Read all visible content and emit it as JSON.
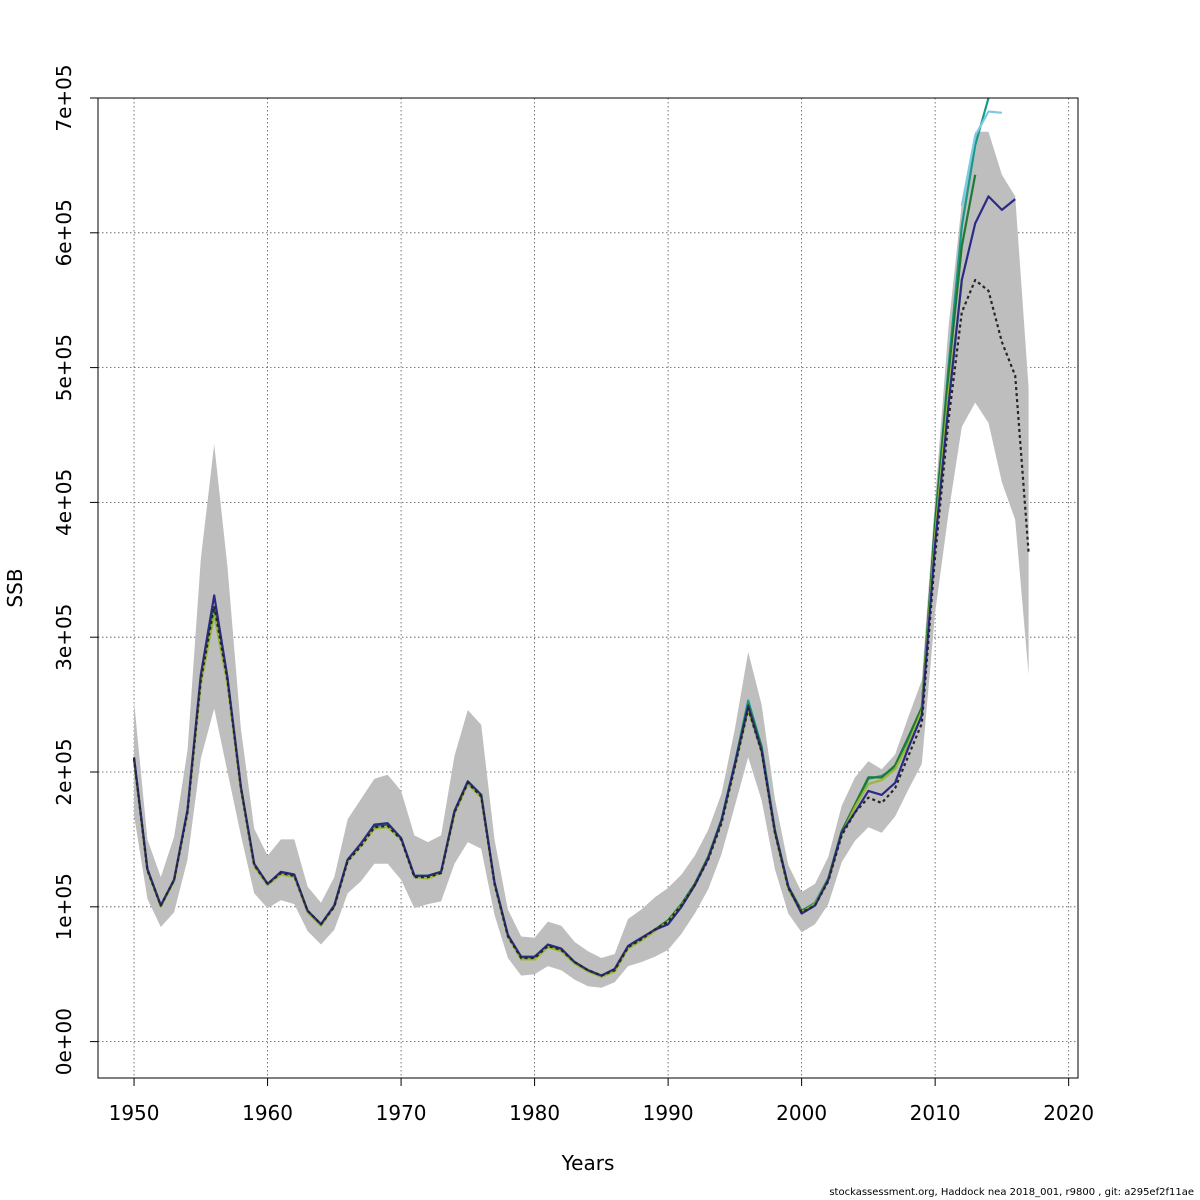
{
  "chart_data": {
    "type": "line",
    "title": "",
    "xlabel": "Years",
    "ylabel": "SSB",
    "xlim": [
      1947.3,
      2020.7
    ],
    "ylim": [
      -27000,
      700000
    ],
    "x_ticks": [
      1950,
      1960,
      1970,
      1980,
      1990,
      2000,
      2010,
      2020
    ],
    "x_tick_labels": [
      "1950",
      "1960",
      "1970",
      "1980",
      "1990",
      "2000",
      "2010",
      "2020"
    ],
    "y_ticks": [
      0,
      100000,
      200000,
      300000,
      400000,
      500000,
      600000,
      700000
    ],
    "y_tick_labels": [
      "0e+00",
      "1e+05",
      "2e+05",
      "3e+05",
      "4e+05",
      "5e+05",
      "6e+05",
      "7e+05"
    ],
    "grid": true,
    "band": {
      "x": [
        1950,
        1951,
        1952,
        1953,
        1954,
        1955,
        1956,
        1957,
        1958,
        1959,
        1960,
        1961,
        1962,
        1963,
        1964,
        1965,
        1966,
        1967,
        1968,
        1969,
        1970,
        1971,
        1972,
        1973,
        1974,
        1975,
        1976,
        1977,
        1978,
        1979,
        1980,
        1981,
        1982,
        1983,
        1984,
        1985,
        1986,
        1987,
        1988,
        1989,
        1990,
        1991,
        1992,
        1993,
        1994,
        1995,
        1996,
        1997,
        1998,
        1999,
        2000,
        2001,
        2002,
        2003,
        2004,
        2005,
        2006,
        2007,
        2008,
        2009,
        2010,
        2011,
        2012,
        2013,
        2014,
        2015,
        2016,
        2017
      ],
      "upper": [
        253000,
        150000,
        122000,
        152000,
        216000,
        358000,
        443000,
        352000,
        232000,
        158000,
        138000,
        150000,
        150000,
        115000,
        103000,
        122000,
        165000,
        180000,
        195000,
        198000,
        186000,
        153000,
        148000,
        153000,
        212000,
        246000,
        235000,
        150000,
        98000,
        78000,
        77000,
        89000,
        86000,
        74000,
        67000,
        62000,
        65000,
        91000,
        98000,
        107000,
        114000,
        124000,
        138000,
        157000,
        184000,
        232000,
        289000,
        250000,
        180000,
        131000,
        111000,
        117000,
        137000,
        175000,
        196000,
        208000,
        202000,
        213000,
        241000,
        268000,
        402000,
        530000,
        622000,
        675000,
        675000,
        643000,
        627000,
        485000
      ],
      "lower": [
        168000,
        106000,
        85000,
        96000,
        135000,
        210000,
        247000,
        200000,
        153000,
        110000,
        99000,
        105000,
        102000,
        82000,
        72000,
        83000,
        110000,
        119000,
        132000,
        132000,
        120000,
        99000,
        102000,
        104000,
        132000,
        148000,
        143000,
        94000,
        62000,
        49000,
        50000,
        56000,
        53000,
        46000,
        41000,
        40000,
        44000,
        56000,
        59000,
        63000,
        68000,
        80000,
        95000,
        113000,
        139000,
        175000,
        211000,
        179000,
        128000,
        95000,
        81000,
        87000,
        102000,
        133000,
        149000,
        159000,
        155000,
        167000,
        187000,
        206000,
        318000,
        392000,
        456000,
        474000,
        459000,
        415000,
        387000,
        272000
      ]
    },
    "series": [
      {
        "color": "#262626",
        "dash": "3,3",
        "x": [
          1950,
          1951,
          1952,
          1953,
          1954,
          1955,
          1956,
          1957,
          1958,
          1959,
          1960,
          1961,
          1962,
          1963,
          1964,
          1965,
          1966,
          1967,
          1968,
          1969,
          1970,
          1971,
          1972,
          1973,
          1974,
          1975,
          1976,
          1977,
          1978,
          1979,
          1980,
          1981,
          1982,
          1983,
          1984,
          1985,
          1986,
          1987,
          1988,
          1989,
          1990,
          1991,
          1992,
          1993,
          1994,
          1995,
          1996,
          1997,
          1998,
          1999,
          2000,
          2001,
          2002,
          2003,
          2004,
          2005,
          2006,
          2007,
          2008,
          2009,
          2010,
          2011,
          2012,
          2013,
          2014,
          2015,
          2016,
          2017
        ],
        "y": [
          210000,
          127000,
          101000,
          120000,
          170000,
          268000,
          323000,
          268000,
          188000,
          131000,
          117000,
          125000,
          123000,
          97000,
          87000,
          100000,
          134000,
          145000,
          159000,
          160000,
          150000,
          122000,
          122000,
          125000,
          170000,
          192000,
          182000,
          117000,
          78000,
          62000,
          62000,
          71000,
          68000,
          59000,
          53000,
          49000,
          53000,
          70000,
          76000,
          83000,
          89000,
          101000,
          116000,
          135000,
          162000,
          204000,
          247000,
          215000,
          155000,
          114000,
          96000,
          101000,
          119000,
          153000,
          170000,
          181000,
          177000,
          188000,
          212000,
          236000,
          360000,
          461000,
          541000,
          565000,
          557000,
          519000,
          494000,
          363000
        ]
      },
      {
        "color": "#2b2b87",
        "x": [
          1950,
          1951,
          1952,
          1953,
          1954,
          1955,
          1956,
          1957,
          1958,
          1959,
          1960,
          1961,
          1962,
          1963,
          1964,
          1965,
          1966,
          1967,
          1968,
          1969,
          1970,
          1971,
          1972,
          1973,
          1974,
          1975,
          1976,
          1977,
          1978,
          1979,
          1980,
          1981,
          1982,
          1983,
          1984,
          1985,
          1986,
          1987,
          1988,
          1989,
          1990,
          1991,
          1992,
          1993,
          1994,
          1995,
          1996,
          1997,
          1998,
          1999,
          2000,
          2001,
          2002,
          2003,
          2004,
          2005,
          2006,
          2007,
          2008,
          2009,
          2010,
          2011,
          2012,
          2013,
          2014,
          2015,
          2016
        ],
        "y": [
          211000,
          128000,
          101000,
          120000,
          172000,
          272000,
          331000,
          270000,
          189000,
          132000,
          117000,
          126000,
          124000,
          97000,
          87000,
          101000,
          135000,
          147000,
          161000,
          162000,
          151000,
          123000,
          123000,
          126000,
          171000,
          193000,
          183000,
          118000,
          79000,
          63000,
          63000,
          72000,
          69000,
          59000,
          53000,
          49000,
          54000,
          71000,
          77000,
          83000,
          87000,
          100000,
          116000,
          136000,
          164000,
          206000,
          249000,
          216000,
          156000,
          115000,
          95000,
          101000,
          120000,
          155000,
          170000,
          186000,
          183000,
          192000,
          218000,
          242000,
          369000,
          472000,
          565000,
          607000,
          627000,
          617000,
          625000
        ]
      },
      {
        "color": "#1a9988",
        "x": [
          1950,
          1951,
          1952,
          1953,
          1954,
          1955,
          1956,
          1957,
          1958,
          1959,
          1960,
          1961,
          1962,
          1963,
          1964,
          1965,
          1966,
          1967,
          1968,
          1969,
          1970,
          1971,
          1972,
          1973,
          1974,
          1975,
          1976,
          1977,
          1978,
          1979,
          1980,
          1981,
          1982,
          1983,
          1984,
          1985,
          1986,
          1987,
          1988,
          1989,
          1990,
          1991,
          1992,
          1993,
          1994,
          1995,
          1996,
          1997,
          1998,
          1999,
          2000,
          2001,
          2002,
          2003,
          2004,
          2005,
          2006,
          2007,
          2008,
          2009,
          2010,
          2011,
          2012,
          2013,
          2014
        ],
        "y": [
          210000,
          128000,
          101000,
          120000,
          171000,
          268000,
          322000,
          267000,
          188000,
          131000,
          117000,
          125000,
          123000,
          97000,
          87000,
          101000,
          135000,
          146000,
          160000,
          161000,
          151000,
          123000,
          123000,
          126000,
          171000,
          193000,
          183000,
          118000,
          79000,
          62000,
          62000,
          71000,
          68000,
          59000,
          53000,
          49000,
          53000,
          70000,
          76000,
          83000,
          90000,
          102000,
          117000,
          137000,
          165000,
          207000,
          253000,
          219000,
          157000,
          115000,
          97000,
          103000,
          121000,
          156000,
          175000,
          195000,
          197000,
          203000,
          223000,
          247000,
          385000,
          500000,
          605000,
          665000,
          700000
        ]
      },
      {
        "color": "#7ec8e3",
        "x": [
          2012,
          2013,
          2014,
          2015
        ],
        "y": [
          620000,
          672000,
          690000,
          689000
        ]
      },
      {
        "color": "#1e7a35",
        "x": [
          1950,
          1951,
          1952,
          1953,
          1954,
          1955,
          1956,
          1957,
          1958,
          1959,
          1960,
          1961,
          1962,
          1963,
          1964,
          1965,
          1966,
          1967,
          1968,
          1969,
          1970,
          1971,
          1972,
          1973,
          1974,
          1975,
          1976,
          1977,
          1978,
          1979,
          1980,
          1981,
          1982,
          1983,
          1984,
          1985,
          1986,
          1987,
          1988,
          1989,
          1990,
          1991,
          1992,
          1993,
          1994,
          1995,
          1996,
          1997,
          1998,
          1999,
          2000,
          2001,
          2002,
          2003,
          2004,
          2005,
          2006,
          2007,
          2008,
          2009,
          2010,
          2011,
          2012,
          2013
        ],
        "y": [
          210000,
          128000,
          101000,
          120000,
          171000,
          268000,
          320000,
          267000,
          188000,
          131000,
          117000,
          125000,
          123000,
          97000,
          87000,
          101000,
          135000,
          146000,
          160000,
          161000,
          151000,
          123000,
          123000,
          126000,
          171000,
          193000,
          183000,
          118000,
          79000,
          62000,
          62000,
          71000,
          68000,
          59000,
          53000,
          49000,
          53000,
          70000,
          76000,
          83000,
          90000,
          102000,
          117000,
          137000,
          164000,
          206000,
          250000,
          218000,
          157000,
          115000,
          97000,
          102000,
          121000,
          156000,
          176000,
          196000,
          196000,
          205000,
          226000,
          248000,
          385000,
          495000,
          590000,
          643000
        ]
      },
      {
        "color": "#9ab83a",
        "x": [
          1950,
          1951,
          1952,
          1953,
          1954,
          1955,
          1956,
          1957,
          1958,
          1959,
          1960,
          1961,
          1962,
          1963,
          1964,
          1965,
          1966,
          1967,
          1968,
          1969,
          1970,
          1971,
          1972,
          1973,
          1974,
          1975,
          1976,
          1977,
          1978,
          1979,
          1980,
          1981,
          1982,
          1983,
          1984,
          1985,
          1986,
          1987,
          1988,
          1989,
          1990,
          1991,
          1992,
          1993,
          1994,
          1995,
          1996,
          1997,
          1998,
          1999,
          2000,
          2001,
          2002,
          2003,
          2004,
          2005,
          2006,
          2007,
          2008,
          2009,
          2010,
          2011,
          2012
        ],
        "y": [
          209000,
          127000,
          100000,
          119000,
          170000,
          265000,
          317000,
          265000,
          187000,
          130000,
          116000,
          124000,
          122000,
          96000,
          86000,
          100000,
          134000,
          145000,
          158000,
          159000,
          150000,
          122000,
          121000,
          125000,
          169000,
          191000,
          181000,
          117000,
          78000,
          61000,
          61000,
          70000,
          67000,
          58000,
          52000,
          48000,
          52000,
          69000,
          75000,
          82000,
          89000,
          101000,
          116000,
          136000,
          163000,
          204000,
          246000,
          215000,
          155000,
          113000,
          96000,
          102000,
          120000,
          154000,
          174000,
          191000,
          194000,
          202000,
          221000,
          245000,
          375000,
          481000,
          562000
        ]
      }
    ]
  },
  "footer": "stockassessment.org, Haddock  nea  2018_001, r9800 , git: a295ef2f11ae"
}
